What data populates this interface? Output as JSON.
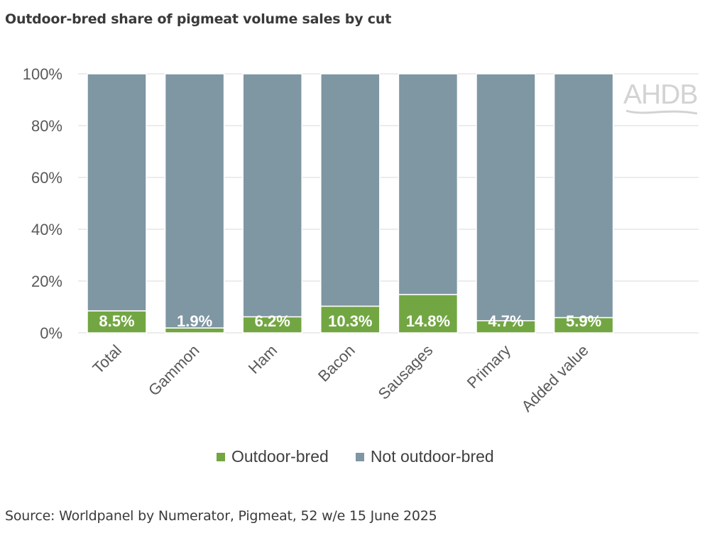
{
  "title": "Outdoor-bred share of pigmeat volume sales by cut",
  "source": "Source: Worldpanel by Numerator, Pigmeat, 52 w/e 15 June 2025",
  "logo_text": "AHDB",
  "colors": {
    "outdoor": "#72a642",
    "not_outdoor": "#7f96a3",
    "grid": "#d9d9d9",
    "axis_text": "#595959",
    "data_label": "#ffffff"
  },
  "chart_data": {
    "type": "bar",
    "stacked": true,
    "categories": [
      "Total",
      "Gammon",
      "Ham",
      "Bacon",
      "Sausages",
      "Primary",
      "Added value"
    ],
    "series": [
      {
        "name": "Outdoor-bred",
        "values": [
          8.5,
          1.9,
          6.2,
          10.3,
          14.8,
          4.7,
          5.9
        ]
      },
      {
        "name": "Not outdoor-bred",
        "values": [
          91.5,
          98.1,
          93.8,
          89.7,
          85.2,
          95.3,
          94.1
        ]
      }
    ],
    "data_labels": [
      "8.5%",
      "1.9%",
      "6.2%",
      "10.3%",
      "14.8%",
      "4.7%",
      "5.9%"
    ],
    "yticks": [
      "0%",
      "20%",
      "40%",
      "60%",
      "80%",
      "100%"
    ],
    "ylim": [
      0,
      100
    ],
    "grid": true,
    "legend": "bottom"
  }
}
